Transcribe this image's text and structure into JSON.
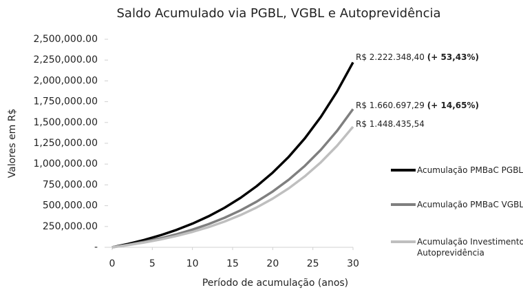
{
  "chart_data": {
    "type": "line",
    "title": "Saldo Acumulado via PGBL, VGBL e Autoprevidência",
    "xlabel": "Período de acumulação (anos)",
    "ylabel": "Valores em R$",
    "x": [
      0,
      2,
      4,
      6,
      8,
      10,
      12,
      14,
      16,
      18,
      20,
      22,
      24,
      26,
      28,
      30
    ],
    "series": [
      {
        "name": "Acumulação PMBaC PGBL",
        "color": "#000000",
        "values": [
          0,
          40800,
          88400,
          143900,
          208700,
          284200,
          372300,
          475000,
          594900,
          734700,
          897700,
          1087900,
          1309700,
          1568500,
          1870300,
          2222348.4
        ]
      },
      {
        "name": "Acumulação PMBaC VGBL",
        "color": "#7f7f7f",
        "values": [
          0,
          30500,
          66100,
          107500,
          156000,
          212400,
          278200,
          355000,
          444600,
          549000,
          670800,
          813000,
          978700,
          1172100,
          1397700,
          1660697.29
        ]
      },
      {
        "name": "Acumulação Investimento Autoprevidência",
        "color": "#bfbfbf",
        "values": [
          0,
          26600,
          57600,
          93800,
          136000,
          185200,
          242700,
          309600,
          387700,
          478900,
          585100,
          709100,
          853600,
          1022300,
          1219000,
          1448435.54
        ]
      }
    ],
    "annotations": [
      {
        "text": "R$ 2.222.348,40",
        "note": "(+ 53,43%)"
      },
      {
        "text": "R$ 1.660.697,29",
        "note": "(+ 14,65%)"
      },
      {
        "text": "R$ 1.448.435,54"
      }
    ],
    "xlim": [
      0,
      30
    ],
    "xticks": [
      0,
      5,
      10,
      15,
      20,
      25,
      30
    ],
    "ylim": [
      0,
      2500000
    ],
    "yticks": [
      {
        "value": 0,
        "label": "-"
      },
      {
        "value": 250000,
        "label": "250,000.00"
      },
      {
        "value": 500000,
        "label": "500,000.00"
      },
      {
        "value": 750000,
        "label": "750,000.00"
      },
      {
        "value": 1000000,
        "label": "1,000,000.00"
      },
      {
        "value": 1250000,
        "label": "1,250,000.00"
      },
      {
        "value": 1500000,
        "label": "1,500,000.00"
      },
      {
        "value": 1750000,
        "label": "1,750,000.00"
      },
      {
        "value": 2000000,
        "label": "2,000,000.00"
      },
      {
        "value": 2250000,
        "label": "2,250,000.00"
      },
      {
        "value": 2500000,
        "label": "2,500,000.00"
      }
    ],
    "legend": "right"
  }
}
